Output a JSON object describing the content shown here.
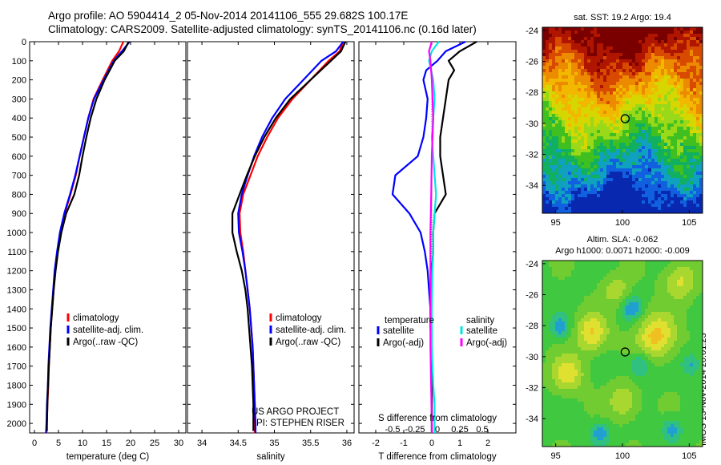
{
  "header": {
    "line1": "Argo profile: AO 5904414_2 05-Nov-2014 20141106_555 29.682S 100.17E",
    "line2": "Climatology: CARS2009. Satellite-adjusted climatology: synTS_20141106.nc (0.16d later)"
  },
  "side_note": "IMOS 13-Nov-2014 20:01:23",
  "colors": {
    "climatology": "#ff0000",
    "satellite": "#0000ff",
    "argo": "#000000",
    "sal_satellite": "#00e5e5",
    "sal_argo": "#ff00ff",
    "axes": "#000000"
  },
  "depth_axis": {
    "ylim": [
      0,
      2050
    ],
    "ticks": [
      0,
      100,
      200,
      300,
      400,
      500,
      600,
      700,
      800,
      900,
      1000,
      1100,
      1200,
      1300,
      1400,
      1500,
      1600,
      1700,
      1800,
      1900,
      2000
    ]
  },
  "chart_data": [
    {
      "type": "line",
      "xlabel": "temperature (deg C)",
      "xlim": [
        -1,
        31.5
      ],
      "xticks": [
        0,
        5,
        10,
        15,
        20,
        25,
        30
      ],
      "xtick_labels": [
        "0",
        "5",
        "10",
        "15",
        "20",
        "25",
        "30"
      ],
      "legend": [
        "climatology",
        "satellite-adj. clim.",
        "Argo(..raw -QC)"
      ],
      "series": [
        {
          "name": "climatology",
          "color": "#ff0000",
          "points": [
            [
              18.5,
              0
            ],
            [
              17.6,
              50
            ],
            [
              16.2,
              100
            ],
            [
              14.2,
              200
            ],
            [
              12.3,
              300
            ],
            [
              11.2,
              400
            ],
            [
              10.3,
              500
            ],
            [
              9.4,
              600
            ],
            [
              8.6,
              700
            ],
            [
              7.5,
              800
            ],
            [
              6.3,
              900
            ],
            [
              5.4,
              1000
            ],
            [
              4.8,
              1100
            ],
            [
              4.3,
              1200
            ],
            [
              4.0,
              1300
            ],
            [
              3.7,
              1400
            ],
            [
              3.4,
              1500
            ],
            [
              3.2,
              1600
            ],
            [
              3.0,
              1700
            ],
            [
              2.9,
              1800
            ],
            [
              2.7,
              1900
            ],
            [
              2.6,
              2000
            ],
            [
              2.5,
              2050
            ]
          ]
        },
        {
          "name": "satellite-adj. clim.",
          "color": "#0000ff",
          "points": [
            [
              19.8,
              0
            ],
            [
              18.2,
              50
            ],
            [
              16.5,
              100
            ],
            [
              14.4,
              200
            ],
            [
              12.4,
              300
            ],
            [
              11.2,
              400
            ],
            [
              10.3,
              500
            ],
            [
              9.4,
              600
            ],
            [
              8.5,
              700
            ],
            [
              7.4,
              800
            ],
            [
              6.2,
              900
            ],
            [
              5.3,
              1000
            ],
            [
              4.7,
              1100
            ],
            [
              4.2,
              1200
            ],
            [
              3.9,
              1300
            ],
            [
              3.6,
              1400
            ],
            [
              3.3,
              1500
            ],
            [
              3.1,
              1600
            ],
            [
              2.9,
              1700
            ],
            [
              2.8,
              1800
            ],
            [
              2.6,
              1900
            ],
            [
              2.5,
              2000
            ],
            [
              2.4,
              2050
            ]
          ]
        },
        {
          "name": "Argo(..raw -QC)",
          "color": "#000000",
          "points": [
            [
              19.6,
              0
            ],
            [
              18.6,
              50
            ],
            [
              16.7,
              100
            ],
            [
              14.6,
              200
            ],
            [
              12.9,
              300
            ],
            [
              11.7,
              400
            ],
            [
              10.8,
              500
            ],
            [
              10.0,
              600
            ],
            [
              9.3,
              700
            ],
            [
              8.3,
              800
            ],
            [
              6.6,
              900
            ],
            [
              5.6,
              1000
            ],
            [
              4.9,
              1100
            ],
            [
              4.4,
              1200
            ],
            [
              4.0,
              1300
            ],
            [
              3.7,
              1400
            ],
            [
              3.4,
              1500
            ],
            [
              3.2,
              1600
            ],
            [
              3.0,
              1700
            ],
            [
              2.8,
              1800
            ],
            [
              2.7,
              1900
            ],
            [
              2.6,
              2000
            ],
            [
              2.6,
              2040
            ]
          ]
        }
      ]
    },
    {
      "type": "line",
      "xlabel": "salinity",
      "xlim": [
        33.8,
        36.1
      ],
      "xticks": [
        34,
        34.5,
        35,
        35.5,
        36
      ],
      "xtick_labels": [
        "34",
        "34.5",
        "35",
        "35.5",
        "36"
      ],
      "legend": [
        "climatology",
        "satellite-adj. clim.",
        "Argo(..raw -QC)"
      ],
      "annotation": [
        "US ARGO PROJECT",
        "PI: STEPHEN RISER"
      ],
      "series": [
        {
          "name": "climatology",
          "color": "#ff0000",
          "points": [
            [
              35.95,
              0
            ],
            [
              35.9,
              50
            ],
            [
              35.75,
              100
            ],
            [
              35.5,
              200
            ],
            [
              35.25,
              300
            ],
            [
              35.05,
              400
            ],
            [
              34.9,
              500
            ],
            [
              34.77,
              600
            ],
            [
              34.67,
              700
            ],
            [
              34.57,
              800
            ],
            [
              34.52,
              900
            ],
            [
              34.53,
              1000
            ],
            [
              34.57,
              1100
            ],
            [
              34.6,
              1200
            ],
            [
              34.63,
              1300
            ],
            [
              34.66,
              1400
            ],
            [
              34.68,
              1500
            ],
            [
              34.7,
              1600
            ],
            [
              34.71,
              1700
            ],
            [
              34.72,
              1800
            ],
            [
              34.73,
              1900
            ],
            [
              34.73,
              2000
            ],
            [
              34.73,
              2050
            ]
          ]
        },
        {
          "name": "satellite-adj. clim.",
          "color": "#0000ff",
          "points": [
            [
              35.95,
              0
            ],
            [
              35.85,
              50
            ],
            [
              35.65,
              100
            ],
            [
              35.4,
              200
            ],
            [
              35.15,
              300
            ],
            [
              34.97,
              400
            ],
            [
              34.83,
              500
            ],
            [
              34.72,
              600
            ],
            [
              34.63,
              700
            ],
            [
              34.55,
              800
            ],
            [
              34.5,
              900
            ],
            [
              34.51,
              1000
            ],
            [
              34.56,
              1100
            ],
            [
              34.6,
              1200
            ],
            [
              34.63,
              1300
            ],
            [
              34.66,
              1400
            ],
            [
              34.68,
              1500
            ],
            [
              34.7,
              1600
            ],
            [
              34.71,
              1700
            ],
            [
              34.72,
              1800
            ],
            [
              34.73,
              1900
            ],
            [
              34.74,
              2000
            ],
            [
              34.74,
              2050
            ]
          ]
        },
        {
          "name": "Argo(..raw -QC)",
          "color": "#000000",
          "points": [
            [
              35.98,
              0
            ],
            [
              35.92,
              50
            ],
            [
              35.78,
              100
            ],
            [
              35.5,
              200
            ],
            [
              35.22,
              300
            ],
            [
              35.02,
              400
            ],
            [
              34.86,
              500
            ],
            [
              34.73,
              600
            ],
            [
              34.62,
              700
            ],
            [
              34.52,
              800
            ],
            [
              34.42,
              900
            ],
            [
              34.42,
              1000
            ],
            [
              34.48,
              1100
            ],
            [
              34.55,
              1200
            ],
            [
              34.6,
              1300
            ],
            [
              34.63,
              1400
            ],
            [
              34.65,
              1500
            ],
            [
              34.67,
              1600
            ],
            [
              34.69,
              1700
            ],
            [
              34.7,
              1800
            ],
            [
              34.71,
              1900
            ],
            [
              34.71,
              2000
            ],
            [
              34.71,
              2040
            ]
          ]
        }
      ]
    },
    {
      "type": "line",
      "xlabel": "T difference from climatology",
      "xlabel_top": "S difference from climatology",
      "xlim": [
        -2.6,
        3.0
      ],
      "xticks": [
        -2,
        -1,
        0,
        1,
        2
      ],
      "xtick_labels": [
        "-2",
        "-1",
        "0",
        "1",
        "2"
      ],
      "xticks_top": [
        -0.5,
        -0.25,
        0,
        0.25,
        0.5
      ],
      "xticks_top_labels": [
        "-0.5",
        "-0.25",
        "0",
        "0.25",
        "0.5"
      ],
      "legend_temp_title": "temperature",
      "legend_sal_title": "salinity",
      "legend": [
        "satellite",
        "Argo(-adj)",
        "satellite",
        "Argo(-adj)"
      ],
      "series": [
        {
          "name": "satellite",
          "color": "#0000ff",
          "points": [
            [
              1.2,
              0
            ],
            [
              0.5,
              50
            ],
            [
              0.2,
              100
            ],
            [
              -0.2,
              150
            ],
            [
              -0.3,
              200
            ],
            [
              -0.15,
              300
            ],
            [
              -0.2,
              400
            ],
            [
              -0.3,
              500
            ],
            [
              -0.5,
              600
            ],
            [
              -1.3,
              700
            ],
            [
              -1.4,
              800
            ],
            [
              -0.8,
              900
            ],
            [
              -0.4,
              1000
            ],
            [
              -0.25,
              1100
            ],
            [
              -0.15,
              1200
            ],
            [
              -0.1,
              1300
            ],
            [
              -0.05,
              1400
            ],
            [
              0,
              1500
            ],
            [
              0,
              1700
            ],
            [
              0,
              2000
            ],
            [
              0,
              2050
            ]
          ]
        },
        {
          "name": "Argo(-adj)",
          "color": "#000000",
          "points": [
            [
              1.6,
              0
            ],
            [
              1.0,
              50
            ],
            [
              0.6,
              100
            ],
            [
              0.8,
              150
            ],
            [
              0.6,
              200
            ],
            [
              0.5,
              300
            ],
            [
              0.4,
              400
            ],
            [
              0.3,
              500
            ],
            [
              0.3,
              600
            ],
            [
              0.4,
              700
            ],
            [
              0.5,
              800
            ],
            [
              0.1,
              900
            ],
            [
              0.05,
              1000
            ],
            [
              0.05,
              1100
            ],
            [
              0,
              1200
            ],
            [
              -0.05,
              1300
            ],
            [
              -0.05,
              1400
            ],
            [
              -0.05,
              1500
            ],
            [
              0,
              1600
            ],
            [
              0,
              2000
            ],
            [
              0,
              2050
            ]
          ]
        },
        {
          "name": "satellite",
          "color": "#00e5e5",
          "points": [
            [
              0.25,
              0
            ],
            [
              0.0,
              50
            ],
            [
              -0.1,
              100
            ],
            [
              0.05,
              200
            ],
            [
              0.1,
              300
            ],
            [
              0.05,
              400
            ],
            [
              0.0,
              500
            ],
            [
              0.05,
              600
            ],
            [
              0.1,
              700
            ],
            [
              0.15,
              800
            ],
            [
              0.1,
              900
            ],
            [
              0.05,
              1000
            ],
            [
              0.05,
              1100
            ],
            [
              0.02,
              1200
            ],
            [
              0.0,
              1400
            ],
            [
              0.0,
              1600
            ],
            [
              0.05,
              1800
            ],
            [
              0.1,
              1900
            ],
            [
              0.1,
              2000
            ],
            [
              0.1,
              2050
            ]
          ]
        },
        {
          "name": "Argo(-adj)",
          "color": "#ff00ff",
          "points": [
            [
              0.0,
              0
            ],
            [
              -0.1,
              50
            ],
            [
              -0.05,
              100
            ],
            [
              0.0,
              200
            ],
            [
              0.05,
              400
            ],
            [
              0.0,
              600
            ],
            [
              -0.02,
              800
            ],
            [
              -0.05,
              1000
            ],
            [
              -0.05,
              1200
            ],
            [
              -0.05,
              1400
            ],
            [
              -0.05,
              1600
            ],
            [
              0,
              2000
            ],
            [
              0,
              2050
            ]
          ]
        }
      ]
    },
    {
      "type": "heatmap",
      "title": "sat. SST: 19.2  Argo: 19.4",
      "xlim": [
        94,
        106
      ],
      "ylim": [
        -35.8,
        -23.8
      ],
      "xticks": [
        95,
        100,
        105
      ],
      "xtick_labels": [
        "95",
        "100",
        "105"
      ],
      "yticks": [
        -24,
        -26,
        -28,
        -30,
        -32,
        -34
      ],
      "ytick_labels": [
        "-24",
        "-26",
        "-28",
        "-30",
        "-32",
        "-34"
      ],
      "marker": [
        100.2,
        -29.7
      ],
      "palette": [
        "#7a0000",
        "#b01500",
        "#d84a00",
        "#ec8a00",
        "#f2b800",
        "#d6d600",
        "#9ad81a",
        "#40c020",
        "#10b060",
        "#10a0c0",
        "#1060e0",
        "#0828b0"
      ]
    },
    {
      "type": "heatmap",
      "title": "Altim. SLA: -0.062",
      "subtitle": "Argo h1000: 0.0071  h2000: -0.009",
      "xlim": [
        94,
        106
      ],
      "ylim": [
        -35.8,
        -23.8
      ],
      "xticks": [
        95,
        100,
        105
      ],
      "xtick_labels": [
        "95",
        "100",
        "105"
      ],
      "yticks": [
        -24,
        -26,
        -28,
        -30,
        -32,
        -34
      ],
      "ytick_labels": [
        "-24",
        "-26",
        "-28",
        "-30",
        "-32",
        "-34"
      ],
      "marker": [
        100.2,
        -29.7
      ],
      "palette": [
        "#20a0d0",
        "#30c080",
        "#40c840",
        "#70cc30",
        "#a8d830",
        "#e0e030",
        "#f0c020",
        "#f09020"
      ]
    }
  ]
}
